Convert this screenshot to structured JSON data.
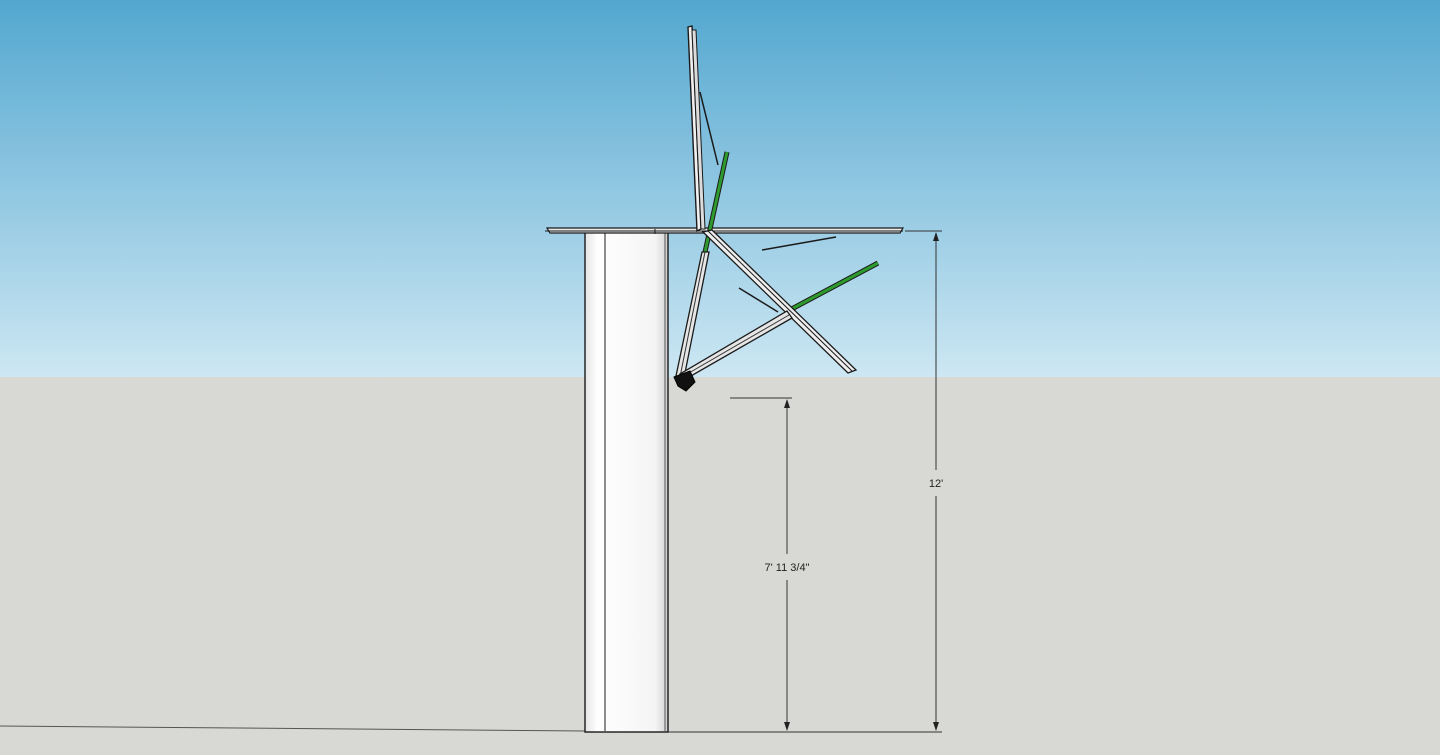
{
  "scene": {
    "sky_top_color": "#53a7d0",
    "sky_bottom_color": "#cde7f3",
    "ground_color": "#d8d8d4",
    "edge_color": "#1a1a1a",
    "highlight_color": "#2e9a2e"
  },
  "dimensions": {
    "overall_height": {
      "label": "12'"
    },
    "clearance_height": {
      "label": "7' 11 3/4\""
    }
  }
}
